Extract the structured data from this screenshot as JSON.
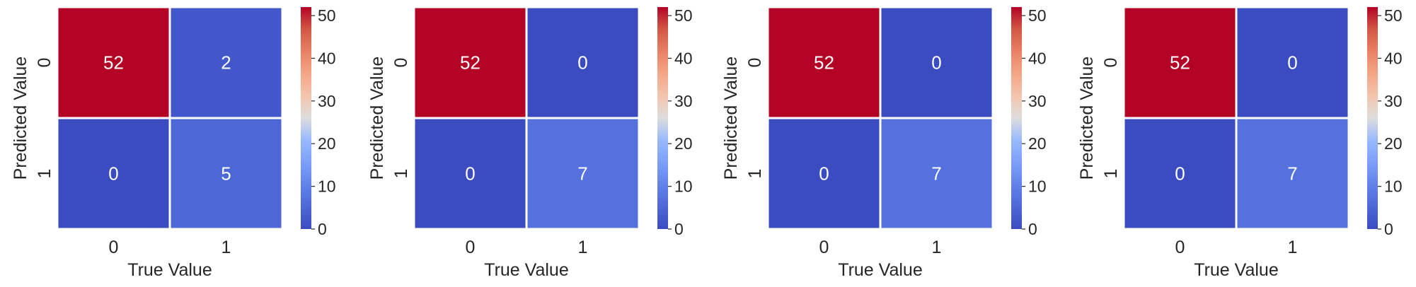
{
  "chart_data": [
    {
      "type": "heatmap",
      "title": "",
      "xlabel": "True Value",
      "ylabel": "Predicted Value",
      "x_categories": [
        "0",
        "1"
      ],
      "y_categories": [
        "0",
        "1"
      ],
      "values": [
        [
          52,
          2
        ],
        [
          0,
          5
        ]
      ],
      "colormap": "coolwarm",
      "colorbar": {
        "min": 0,
        "max": 52,
        "ticks": [
          0,
          10,
          20,
          30,
          40,
          50
        ]
      }
    },
    {
      "type": "heatmap",
      "title": "",
      "xlabel": "True Value",
      "ylabel": "Predicted Value",
      "x_categories": [
        "0",
        "1"
      ],
      "y_categories": [
        "0",
        "1"
      ],
      "values": [
        [
          52,
          0
        ],
        [
          0,
          7
        ]
      ],
      "colormap": "coolwarm",
      "colorbar": {
        "min": 0,
        "max": 52,
        "ticks": [
          0,
          10,
          20,
          30,
          40,
          50
        ]
      }
    },
    {
      "type": "heatmap",
      "title": "",
      "xlabel": "True Value",
      "ylabel": "Predicted Value",
      "x_categories": [
        "0",
        "1"
      ],
      "y_categories": [
        "0",
        "1"
      ],
      "values": [
        [
          52,
          0
        ],
        [
          0,
          7
        ]
      ],
      "colormap": "coolwarm",
      "colorbar": {
        "min": 0,
        "max": 52,
        "ticks": [
          0,
          10,
          20,
          30,
          40,
          50
        ]
      }
    },
    {
      "type": "heatmap",
      "title": "",
      "xlabel": "True Value",
      "ylabel": "Predicted Value",
      "x_categories": [
        "0",
        "1"
      ],
      "y_categories": [
        "0",
        "1"
      ],
      "values": [
        [
          52,
          0
        ],
        [
          0,
          7
        ]
      ],
      "colormap": "coolwarm",
      "colorbar": {
        "min": 0,
        "max": 52,
        "ticks": [
          0,
          10,
          20,
          30,
          40,
          50
        ]
      }
    }
  ]
}
